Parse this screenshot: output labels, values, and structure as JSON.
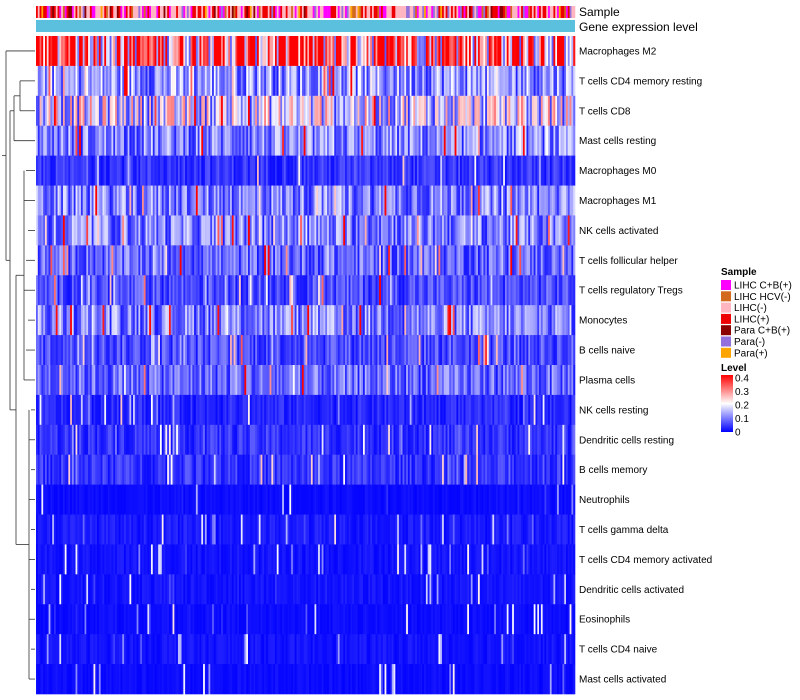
{
  "chart_data": {
    "type": "heatmap",
    "annotation_tracks": [
      {
        "label": "Sample",
        "kind": "sample-groups"
      },
      {
        "label": "Gene expression level",
        "kind": "constant",
        "color": "#5bc0de"
      }
    ],
    "rows": [
      {
        "label": "Macrophages M2",
        "mean": 0.32
      },
      {
        "label": "T cells CD4 memory resting",
        "mean": 0.12
      },
      {
        "label": "T cells CD8",
        "mean": 0.17
      },
      {
        "label": "Mast cells resting",
        "mean": 0.1
      },
      {
        "label": "Macrophages M0",
        "mean": 0.04
      },
      {
        "label": "Macrophages M1",
        "mean": 0.1
      },
      {
        "label": "NK cells activated",
        "mean": 0.1
      },
      {
        "label": "T cells follicular helper",
        "mean": 0.08
      },
      {
        "label": "T cells regulatory  Tregs",
        "mean": 0.06
      },
      {
        "label": "Monocytes",
        "mean": 0.1
      },
      {
        "label": "B cells naive",
        "mean": 0.06
      },
      {
        "label": "Plasma cells",
        "mean": 0.08
      },
      {
        "label": "NK cells resting",
        "mean": 0.03
      },
      {
        "label": "Dendritic cells resting",
        "mean": 0.04
      },
      {
        "label": "B cells memory",
        "mean": 0.04
      },
      {
        "label": "Neutrophils",
        "mean": 0.01
      },
      {
        "label": "T cells gamma delta",
        "mean": 0.02
      },
      {
        "label": "T cells CD4 memory activated",
        "mean": 0.015
      },
      {
        "label": "Dendritic cells activated",
        "mean": 0.015
      },
      {
        "label": "Eosinophils",
        "mean": 0.01
      },
      {
        "label": "T cells CD4 naive",
        "mean": 0.015
      },
      {
        "label": "Mast cells activated",
        "mean": 0.01
      }
    ],
    "n_samples": 300,
    "legend_sample": {
      "title": "Sample",
      "items": [
        {
          "label": "LIHC C+B(+)",
          "color": "#ff00ff"
        },
        {
          "label": "LIHC HCV(-)",
          "color": "#d2691e"
        },
        {
          "label": "LIHC(-)",
          "color": "#ffb6c1"
        },
        {
          "label": "LIHC(+)",
          "color": "#ee0000"
        },
        {
          "label": "Para C+B(+)",
          "color": "#8b0000"
        },
        {
          "label": "Para(-)",
          "color": "#9370db"
        },
        {
          "label": "Para(+)",
          "color": "#ffa500"
        }
      ]
    },
    "legend_level": {
      "title": "Level",
      "ticks": [
        "0.4",
        "0.3",
        "0.2",
        "0.1",
        "0"
      ],
      "range": [
        0,
        0.4
      ],
      "colors": [
        "#0000ff",
        "#ffffff",
        "#ff0000"
      ]
    }
  }
}
